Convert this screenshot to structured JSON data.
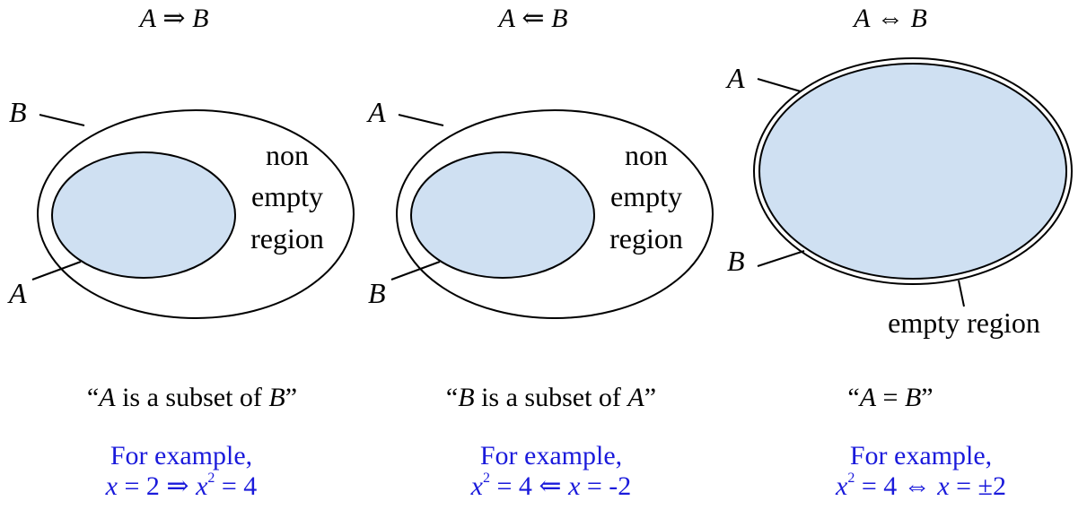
{
  "panels": [
    {
      "heading": {
        "left": "A",
        "op": "⇒",
        "right": "B"
      },
      "outer_label": "B",
      "inner_label": "A",
      "region_lines": [
        "non",
        "empty",
        "region"
      ],
      "caption": {
        "open": "“",
        "a": "A",
        "mid": " is a subset of ",
        "b": "B",
        "close": "”"
      },
      "example_prefix": "For example,",
      "example": {
        "p1": "x",
        "p2": " = 2 ",
        "p3": "⇒",
        "p4": " ",
        "p5": "x",
        "p6": "2",
        "p7": " = 4"
      }
    },
    {
      "heading": {
        "left": "A",
        "op": "⇐",
        "right": "B"
      },
      "outer_label": "A",
      "inner_label": "B",
      "region_lines": [
        "non",
        "empty",
        "region"
      ],
      "caption": {
        "open": "“",
        "a": "B",
        "mid": " is a subset of ",
        "b": "A",
        "close": "”"
      },
      "example_prefix": "For example,",
      "example": {
        "p1": "x",
        "p2": "2",
        "p3": " = 4 ",
        "p4": "⇐",
        "p5": " ",
        "p6": "x",
        "p7": " = -2"
      }
    },
    {
      "heading": {
        "left": "A",
        "op": "⇔",
        "right": "B"
      },
      "outer_label": "A",
      "inner_label": "B",
      "region_label": "empty region",
      "caption": {
        "open": "“",
        "a": "A",
        "mid": " = ",
        "b": "B",
        "close": "”"
      },
      "example_prefix": "For example,",
      "example": {
        "p1": "x",
        "p2": "2",
        "p3": " = 4 ",
        "p4": "⇔",
        "p5": " ",
        "p6": "x",
        "p7": " = ±2"
      }
    }
  ],
  "colors": {
    "fill": "#cfe0f2",
    "stroke": "#000000",
    "example_text": "#1a1adb"
  }
}
